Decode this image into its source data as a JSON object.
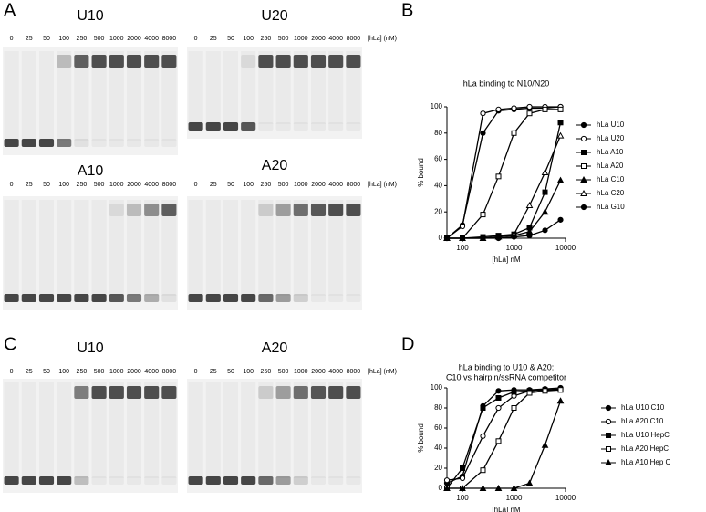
{
  "panel_labels": [
    "A",
    "B",
    "C",
    "D"
  ],
  "gels": [
    {
      "title": "U10",
      "lanes": [
        "0",
        "25",
        "50",
        "100",
        "250",
        "500",
        "1000",
        "2000",
        "4000",
        "8000"
      ]
    },
    {
      "title": "U20",
      "lanes": [
        "0",
        "25",
        "50",
        "100",
        "250",
        "500",
        "1000",
        "2000",
        "4000",
        "8000"
      ],
      "unit": "[hLa] (nM)"
    },
    {
      "title": "A10",
      "lanes": [
        "0",
        "25",
        "50",
        "100",
        "250",
        "500",
        "1000",
        "2000",
        "4000",
        "8000"
      ]
    },
    {
      "title": "A20",
      "lanes": [
        "0",
        "25",
        "50",
        "100",
        "250",
        "500",
        "1000",
        "2000",
        "4000",
        "8000"
      ],
      "unit": "[hLa] (nM)"
    },
    {
      "title": "U10",
      "lanes": [
        "0",
        "25",
        "50",
        "100",
        "250",
        "500",
        "1000",
        "2000",
        "4000",
        "8000"
      ]
    },
    {
      "title": "A20",
      "lanes": [
        "0",
        "25",
        "50",
        "100",
        "250",
        "500",
        "1000",
        "2000",
        "4000",
        "8000"
      ],
      "unit": "[hLa] (nM)"
    }
  ],
  "chart_data": [
    {
      "type": "line",
      "title": "hLa binding to N10/N20",
      "xlabel": "[hLa] nM",
      "ylabel": "% bound",
      "xscale": "log",
      "xlim": [
        50,
        10000
      ],
      "xticks": [
        100,
        1000,
        10000
      ],
      "ylim": [
        0,
        100
      ],
      "yticks": [
        0,
        20,
        40,
        60,
        80,
        100
      ],
      "x": [
        50,
        100,
        250,
        500,
        1000,
        2000,
        4000,
        8000
      ],
      "series": [
        {
          "name": "hLa U10",
          "color": "#000000",
          "marker": "circle",
          "values": [
            0,
            10,
            80,
            97,
            98,
            99,
            99,
            100
          ]
        },
        {
          "name": "hLa U20",
          "color": "#000000",
          "marker": "circle-open",
          "values": [
            0,
            9,
            95,
            98,
            99,
            100,
            100,
            100
          ]
        },
        {
          "name": "hLa A10",
          "color": "#000000",
          "marker": "square",
          "values": [
            0,
            0,
            1,
            2,
            3,
            8,
            35,
            88
          ]
        },
        {
          "name": "hLa A20",
          "color": "#000000",
          "marker": "square-open",
          "values": [
            0,
            0,
            18,
            47,
            80,
            95,
            98,
            98
          ]
        },
        {
          "name": "hLa C10",
          "color": "#000000",
          "marker": "triangle",
          "values": [
            0,
            0,
            0,
            1,
            2,
            5,
            20,
            44
          ]
        },
        {
          "name": "hLa C20",
          "color": "#000000",
          "marker": "triangle-open",
          "values": [
            0,
            0,
            0,
            1,
            3,
            25,
            50,
            78
          ]
        },
        {
          "name": "hLa G10",
          "color": "#000000",
          "marker": "circle",
          "values": [
            0,
            0,
            0,
            0,
            1,
            2,
            6,
            14
          ]
        }
      ]
    },
    {
      "type": "line",
      "title": "hLa binding to U10 & A20:",
      "subtitle": "C10 vs hairpin/ssRNA competitor",
      "xlabel": "[hLa] nM",
      "ylabel": "% bound",
      "xscale": "log",
      "xlim": [
        50,
        10000
      ],
      "xticks": [
        100,
        1000,
        10000
      ],
      "ylim": [
        0,
        100
      ],
      "yticks": [
        0,
        20,
        40,
        60,
        80,
        100
      ],
      "x": [
        50,
        100,
        250,
        500,
        1000,
        2000,
        4000,
        8000
      ],
      "series": [
        {
          "name": "hLa U10 C10",
          "color": "#000000",
          "marker": "circle",
          "values": [
            5,
            12,
            82,
            97,
            98,
            98,
            99,
            100
          ]
        },
        {
          "name": "hLa A20 C10",
          "color": "#000000",
          "marker": "circle-open",
          "values": [
            8,
            10,
            52,
            80,
            92,
            97,
            98,
            99
          ]
        },
        {
          "name": "hLa U10 HepC",
          "color": "#000000",
          "marker": "square",
          "values": [
            0,
            20,
            80,
            90,
            96,
            97,
            98,
            98
          ]
        },
        {
          "name": "hLa A20 HepC",
          "color": "#000000",
          "marker": "square-open",
          "values": [
            0,
            0,
            18,
            47,
            80,
            95,
            97,
            98
          ]
        },
        {
          "name": "hLa A10 Hep C",
          "color": "#000000",
          "marker": "triangle",
          "values": [
            0,
            0,
            0,
            0,
            0,
            5,
            43,
            87
          ]
        }
      ]
    }
  ]
}
